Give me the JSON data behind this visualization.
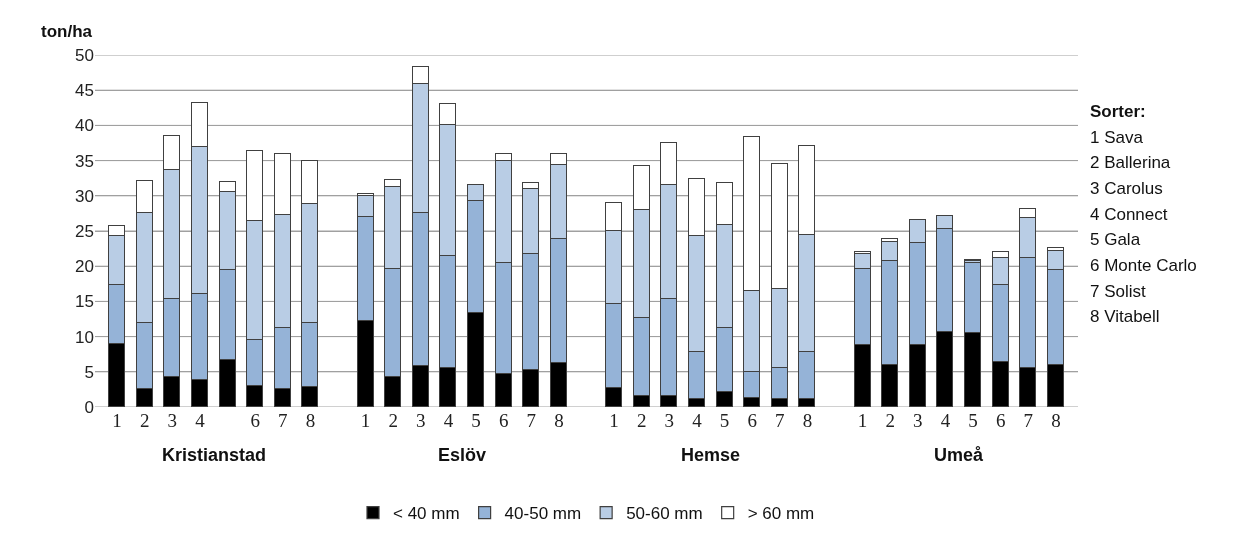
{
  "chart_data": {
    "type": "bar",
    "stacked": true,
    "ylabel": "ton/ha",
    "categories": [
      "1",
      "2",
      "3",
      "4",
      null,
      "6",
      "7",
      "8",
      null,
      "1",
      "2",
      "3",
      "4",
      "5",
      "6",
      "7",
      "8",
      null,
      "1",
      "2",
      "3",
      "4",
      "5",
      "6",
      "7",
      "8",
      null,
      "1",
      "2",
      "3",
      "4",
      "5",
      "6",
      "7",
      "8"
    ],
    "series": [
      {
        "name": "< 40 mm",
        "color": "#000000",
        "values": [
          9,
          2.6,
          4.3,
          3.9,
          6.7,
          3,
          2.6,
          2.8,
          null,
          12.2,
          4.3,
          5.8,
          5.6,
          13.3,
          4.7,
          5.2,
          6.2,
          null,
          2.7,
          1.5,
          1.5,
          1.1,
          2.1,
          1.3,
          1.1,
          1.1,
          null,
          8.8,
          6,
          8.8,
          10.7,
          10.5,
          6.4,
          5.6,
          6
        ]
      },
      {
        "name": "40-50 mm",
        "color": "#95b3d7",
        "values": [
          8.4,
          9.4,
          11.1,
          12.2,
          12.7,
          6.5,
          8.6,
          9.2,
          null,
          14.8,
          15.3,
          21.7,
          15.9,
          15.9,
          15.7,
          16.5,
          17.6,
          null,
          11.9,
          11.2,
          13.8,
          6.7,
          9.1,
          3.7,
          4.5,
          6.7,
          null,
          10.8,
          14.8,
          14.5,
          14.6,
          10,
          11,
          15.5,
          13.4
        ]
      },
      {
        "name": "50-60 mm",
        "color": "#b9cde5",
        "values": [
          6.9,
          15.5,
          18.3,
          20.9,
          11.1,
          16.9,
          16.1,
          16.8,
          null,
          3,
          11.6,
          18.4,
          18.6,
          2.3,
          14.5,
          9.3,
          10.6,
          null,
          10.4,
          15.3,
          16.2,
          16.5,
          14.6,
          11.5,
          11.1,
          16.7,
          null,
          2.1,
          2.6,
          3.2,
          1.8,
          0.3,
          3.8,
          5.8,
          2.8
        ]
      },
      {
        "name": "> 60 mm",
        "color": "#ffffff",
        "values": [
          1.4,
          4.6,
          4.8,
          6.2,
          1.4,
          10,
          8.7,
          6.2,
          null,
          0.2,
          1,
          2.4,
          3,
          null,
          1.1,
          0.8,
          1.5,
          null,
          4,
          6.3,
          6,
          8.1,
          6,
          21.9,
          17.8,
          12.6,
          null,
          0.3,
          0.4,
          null,
          null,
          0.1,
          0.8,
          1.2,
          0.4
        ]
      }
    ],
    "ylim": [
      0,
      50
    ],
    "yticks": [
      0,
      5,
      10,
      15,
      20,
      25,
      30,
      35,
      40,
      45,
      50
    ],
    "grid": "y",
    "legend": "bottom",
    "annotations": [
      "Kristianstad",
      "Eslöv",
      "Hemse",
      "Umeå",
      "Sorter:",
      "1 Sava",
      "2 Ballerina",
      "3 Carolus",
      "4 Connect",
      "5 Gala",
      "6 Monte Carlo",
      "7 Solist",
      "8 Vitabell"
    ]
  }
}
